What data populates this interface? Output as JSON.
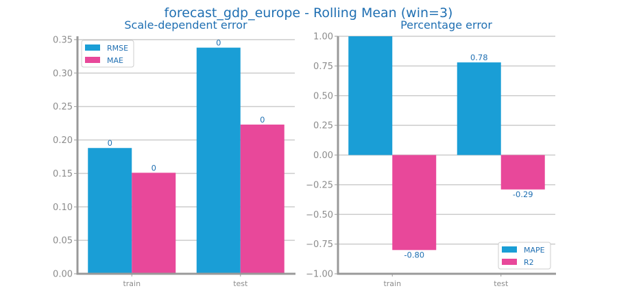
{
  "title": "forecast_gdp_europe - Rolling Mean (win=3)",
  "colors": {
    "series1": "#1a9ed6",
    "series2": "#e8489a",
    "grid": "#cccccc",
    "axis": "#999999",
    "text": "#1f6fb2",
    "tick": "#8c8c8c"
  },
  "chart_data": [
    {
      "type": "bar",
      "title": "Scale-dependent error",
      "categories": [
        "train",
        "test"
      ],
      "series": [
        {
          "name": "RMSE",
          "values": [
            0.188,
            0.338
          ],
          "labels": [
            "0",
            "0"
          ]
        },
        {
          "name": "MAE",
          "values": [
            0.151,
            0.223
          ],
          "labels": [
            "0",
            "0"
          ]
        }
      ],
      "ylim": [
        0,
        0.355
      ],
      "yticks": [
        0.0,
        0.05,
        0.1,
        0.15,
        0.2,
        0.25,
        0.3,
        0.35
      ],
      "ytick_labels": [
        "0.00",
        "0.05",
        "0.10",
        "0.15",
        "0.20",
        "0.25",
        "0.30",
        "0.35"
      ],
      "grid": true,
      "legend": "top-left"
    },
    {
      "type": "bar",
      "title": "Percentage error",
      "categories": [
        "train",
        "test"
      ],
      "series": [
        {
          "name": "MAPE",
          "values": [
            1.0,
            0.78
          ],
          "labels": [
            "",
            "0.78"
          ]
        },
        {
          "name": "R2",
          "values": [
            -0.8,
            -0.29
          ],
          "labels": [
            "-0.80",
            "-0.29"
          ]
        }
      ],
      "ylim": [
        -1.0,
        1.0
      ],
      "yticks": [
        -1.0,
        -0.75,
        -0.5,
        -0.25,
        0.0,
        0.25,
        0.5,
        0.75,
        1.0
      ],
      "ytick_labels": [
        "−1.00",
        "−0.75",
        "−0.50",
        "−0.25",
        "0.00",
        "0.25",
        "0.50",
        "0.75",
        "1.00"
      ],
      "grid": true,
      "legend": "bottom-right"
    }
  ]
}
